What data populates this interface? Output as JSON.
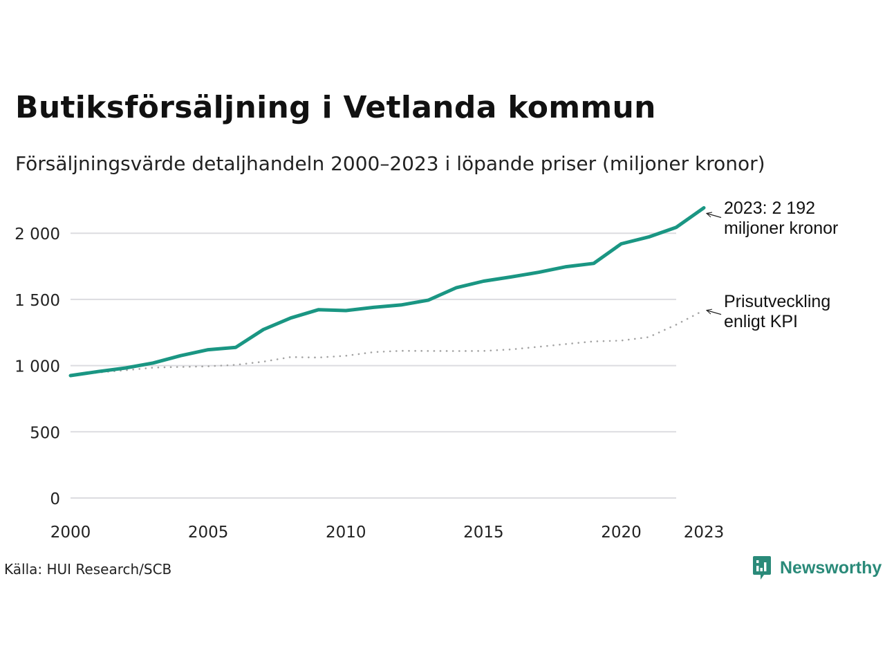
{
  "chart_data": {
    "type": "line",
    "title": "Butiksförsäljning i Vetlanda kommun",
    "subtitle": "Försäljningsvärde detaljhandeln 2000–2023 i löpande priser (miljoner kronor)",
    "x": [
      2000,
      2001,
      2002,
      2003,
      2004,
      2005,
      2006,
      2007,
      2008,
      2009,
      2010,
      2011,
      2012,
      2013,
      2014,
      2015,
      2016,
      2017,
      2018,
      2019,
      2020,
      2021,
      2022,
      2023
    ],
    "series": [
      {
        "name": "Försäljningsvärde",
        "style": "solid",
        "color": "#1a9683",
        "values": [
          925,
          955,
          982,
          1020,
          1075,
          1120,
          1138,
          1272,
          1360,
          1422,
          1416,
          1440,
          1458,
          1495,
          1588,
          1638,
          1670,
          1705,
          1747,
          1772,
          1920,
          1972,
          2045,
          2192
        ]
      },
      {
        "name": "Prisutveckling enligt KPI",
        "style": "dotted",
        "color": "#a3a3a3",
        "values": [
          925,
          948,
          965,
          985,
          990,
          995,
          1006,
          1030,
          1065,
          1061,
          1074,
          1102,
          1112,
          1111,
          1110,
          1111,
          1122,
          1142,
          1163,
          1183,
          1189,
          1215,
          1310,
          1418
        ]
      }
    ],
    "ylim": [
      0,
      2260
    ],
    "yticks": [
      0,
      500,
      1000,
      1500,
      2000
    ],
    "ytick_labels": [
      "0",
      "500",
      "1 000",
      "1 500",
      "2 000"
    ],
    "xticks": [
      2000,
      2005,
      2010,
      2015,
      2020,
      2023
    ],
    "xtick_labels": [
      "2000",
      "2005",
      "2010",
      "2015",
      "2020",
      "2023"
    ],
    "grid": true,
    "annotations": [
      {
        "lines": [
          "2023: 2 192",
          "miljoner kronor"
        ],
        "x": 2023,
        "y": 2192,
        "series": 0
      },
      {
        "lines": [
          "Prisutveckling",
          "enligt KPI"
        ],
        "x": 2023,
        "y": 1418,
        "series": 1
      }
    ]
  },
  "source": "Källa: HUI Research/SCB",
  "brand": {
    "name": "Newsworthy",
    "color": "#2a8a79",
    "icon": "newsworthy-logo-icon"
  }
}
